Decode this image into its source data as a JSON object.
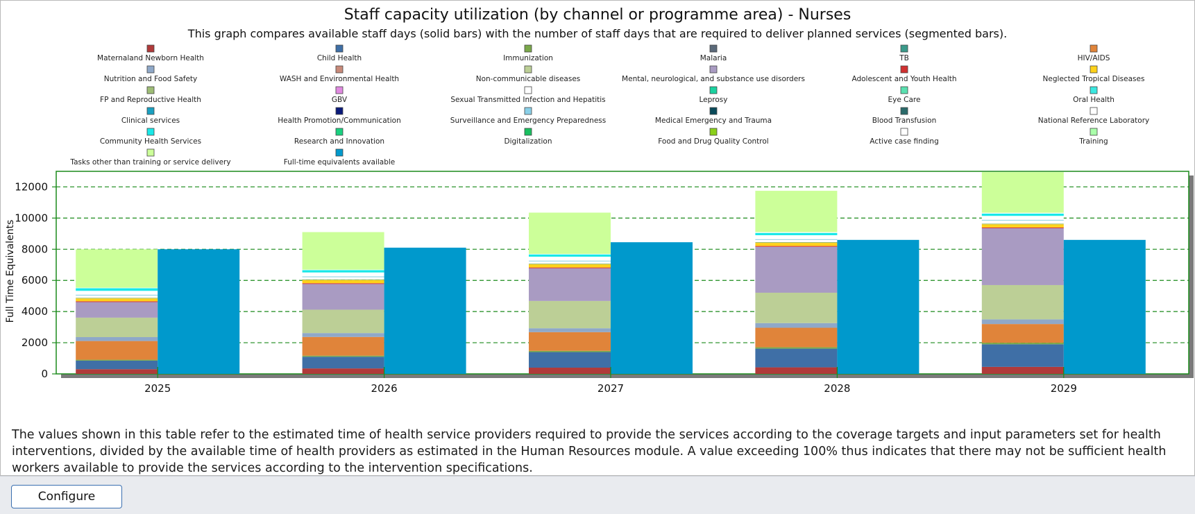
{
  "description": "The values shown in this table refer to the estimated time of health service providers required to provide the services according to the coverage targets and input parameters set for health interventions, divided by the available time of health providers as estimated in the Human Resources module. A value exceeding 100% thus indicates that there may not be sufficient health workers available to provide the services according to the intervention specifications.",
  "footer": {
    "configure_label": "Configure"
  },
  "chart_data": {
    "type": "bar",
    "title": "Staff capacity utilization (by channel or programme area) - Nurses",
    "subtitle": "This graph compares available staff days (solid bars) with the number of staff days that are required to deliver planned services (segmented bars).",
    "ylabel": "Full Time Equivalents",
    "xlabel": "",
    "ylim": [
      0,
      13000
    ],
    "yticks": [
      0,
      2000,
      4000,
      6000,
      8000,
      10000,
      12000
    ],
    "grid": true,
    "legend_position": "top",
    "categories": [
      "2025",
      "2026",
      "2027",
      "2028",
      "2029"
    ],
    "legend": [
      {
        "name": "Maternaland Newborn Health",
        "color": "#b03a3a"
      },
      {
        "name": "Child Health",
        "color": "#3f6fa6"
      },
      {
        "name": "Immunization",
        "color": "#7aa84a"
      },
      {
        "name": "Malaria",
        "color": "#5b6a7a"
      },
      {
        "name": "TB",
        "color": "#3a9a8a"
      },
      {
        "name": "HIV/AIDS",
        "color": "#e0843a"
      },
      {
        "name": "Nutrition and Food Safety",
        "color": "#8fa8c8"
      },
      {
        "name": "WASH and Environmental Health",
        "color": "#c88a7a"
      },
      {
        "name": "Non-communicable diseases",
        "color": "#bccf96"
      },
      {
        "name": "Mental, neurological, and substance use disorders",
        "color": "#a99bc2"
      },
      {
        "name": "Adolescent and Youth Health",
        "color": "#d03030"
      },
      {
        "name": "Neglected Tropical Diseases",
        "color": "#ffd21a"
      },
      {
        "name": "FP and Reproductive Health",
        "color": "#9ebd76"
      },
      {
        "name": "GBV",
        "color": "#e08ae0"
      },
      {
        "name": "Sexual Transmitted Infection and Hepatitis",
        "color": "#ffffff"
      },
      {
        "name": "Leprosy",
        "color": "#1ad2a0"
      },
      {
        "name": "Eye Care",
        "color": "#5ae0b0"
      },
      {
        "name": "Oral Health",
        "color": "#3ae8e0"
      },
      {
        "name": "Clinical services",
        "color": "#1aa0c0"
      },
      {
        "name": "Health Promotion/Communication",
        "color": "#0a1a7a"
      },
      {
        "name": "Surveillance and Emergency Preparedness",
        "color": "#8ad0e8"
      },
      {
        "name": "Medical Emergency and Trauma",
        "color": "#0a4a5a"
      },
      {
        "name": "Blood Transfusion",
        "color": "#2a6a6a"
      },
      {
        "name": "National Reference Laboratory",
        "color": "#ffffff"
      },
      {
        "name": "Community Health Services",
        "color": "#1ae8e8"
      },
      {
        "name": "Research and Innovation",
        "color": "#1ad080"
      },
      {
        "name": "Digitalization",
        "color": "#1ac060"
      },
      {
        "name": "Food and Drug Quality Control",
        "color": "#8ad01a"
      },
      {
        "name": "Active case  finding",
        "color": "#ffffff"
      },
      {
        "name": "Training",
        "color": "#aaffaa"
      },
      {
        "name": "Tasks other than training or service delivery",
        "color": "#ccff99"
      },
      {
        "name": "Full-time equivalents available",
        "color": "#0099cc"
      }
    ],
    "stack_series": [
      {
        "name": "Maternaland Newborn Health",
        "color": "#b03a3a",
        "values": [
          300,
          350,
          400,
          420,
          450
        ]
      },
      {
        "name": "Child Health",
        "color": "#3f6fa6",
        "values": [
          550,
          750,
          1000,
          1200,
          1450
        ]
      },
      {
        "name": "Immunization",
        "color": "#7aa84a",
        "values": [
          60,
          70,
          80,
          90,
          100
        ]
      },
      {
        "name": "HIV/AIDS",
        "color": "#e0843a",
        "values": [
          1200,
          1200,
          1200,
          1250,
          1200
        ]
      },
      {
        "name": "Nutrition and Food Safety",
        "color": "#8fa8c8",
        "values": [
          250,
          250,
          250,
          300,
          300
        ]
      },
      {
        "name": "Non-communicable diseases",
        "color": "#bccf96",
        "values": [
          1250,
          1500,
          1750,
          1950,
          2200
        ]
      },
      {
        "name": "Mental, neurological, and substance use disorders",
        "color": "#a99bc2",
        "values": [
          1000,
          1650,
          2100,
          2950,
          3650
        ]
      },
      {
        "name": "Adolescent and Youth Health",
        "color": "#d03030",
        "values": [
          50,
          50,
          50,
          50,
          50
        ]
      },
      {
        "name": "Neglected Tropical Diseases",
        "color": "#ffd21a",
        "values": [
          180,
          200,
          200,
          200,
          200
        ]
      },
      {
        "name": "FP and Reproductive Health",
        "color": "#9ebd76",
        "values": [
          50,
          50,
          50,
          50,
          50
        ]
      },
      {
        "name": "Sexual Transmitted Infection and Hepatitis",
        "color": "#ffffff",
        "values": [
          150,
          150,
          150,
          150,
          200
        ]
      },
      {
        "name": "Clinical services",
        "color": "#1aa0c0",
        "values": [
          20,
          20,
          20,
          20,
          20
        ]
      },
      {
        "name": "Surveillance and Emergency Preparedness",
        "color": "#8ad0e8",
        "values": [
          20,
          20,
          20,
          20,
          20
        ]
      },
      {
        "name": "National Reference Laboratory",
        "color": "#ffffff",
        "values": [
          250,
          250,
          250,
          250,
          250
        ]
      },
      {
        "name": "Community Health Services",
        "color": "#1ae8e8",
        "values": [
          170,
          150,
          150,
          150,
          150
        ]
      },
      {
        "name": "Active case  finding",
        "color": "#ffffff",
        "values": [
          30,
          30,
          30,
          50,
          50
        ]
      },
      {
        "name": "Tasks other than training or service delivery",
        "color": "#ccff99",
        "values": [
          2470,
          2410,
          2650,
          2650,
          2610
        ]
      }
    ],
    "available_series": {
      "name": "Full-time equivalents available",
      "color": "#0099cc",
      "values": [
        8000,
        8100,
        8450,
        8600,
        8600
      ]
    }
  }
}
